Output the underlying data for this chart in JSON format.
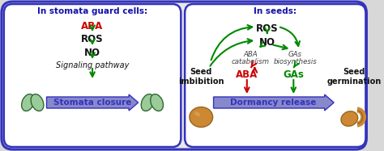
{
  "bg_color": "#d8d8d8",
  "outer_box_edge": "#3333bb",
  "outer_box_face": "#e8e8e8",
  "panel_edge": "#3333bb",
  "panel_face": "#ffffff",
  "title_color": "#1111aa",
  "green": "#008800",
  "red": "#cc0000",
  "black": "#111111",
  "blue_arrow_face": "#8888cc",
  "blue_arrow_edge": "#3333bb",
  "guard_fill": "#99cc99",
  "guard_edge": "#336633",
  "seed_fill": "#cc8833",
  "seed_edge": "#996622",
  "left_title": "In stomata guard cells:",
  "right_title": "In seeds:",
  "stomata_closure": "Stomata closure",
  "dormancy_release": "Dormancy release",
  "seed_imbibition": "Seed\nimbibition",
  "seed_germination": "Seed\ngermination",
  "aba_catabolism_line1": "ABA",
  "aba_catabolism_line2": "catabolism",
  "gas_biosynthesis_line1": "GAs",
  "gas_biosynthesis_line2": "biosynthesis"
}
